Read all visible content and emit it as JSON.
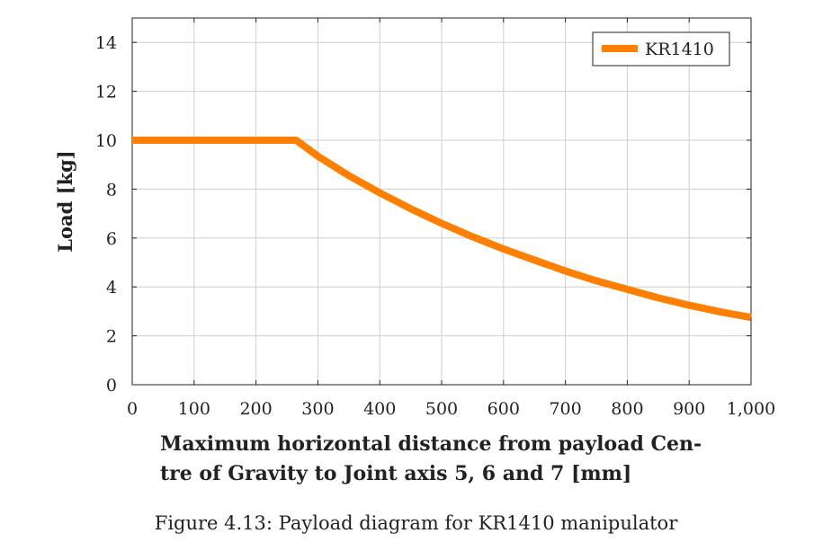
{
  "chart_data": {
    "type": "line",
    "xlabel": "Maximum horizontal distance from payload Centre of Gravity to Joint axis 5, 6 and 7 [mm]",
    "xlabel_lines": [
      "Maximum horizontal distance from payload Cen-",
      "tre of Gravity to Joint axis 5, 6 and 7 [mm]"
    ],
    "ylabel": "Load [kg]",
    "xlim": [
      0,
      1000
    ],
    "ylim": [
      0,
      15
    ],
    "x_ticks": [
      0,
      100,
      200,
      300,
      400,
      500,
      600,
      700,
      800,
      900,
      1000
    ],
    "x_tick_labels": [
      "0",
      "100",
      "200",
      "300",
      "400",
      "500",
      "600",
      "700",
      "800",
      "900",
      "1,000"
    ],
    "y_ticks": [
      0,
      2,
      4,
      6,
      8,
      10,
      12,
      14
    ],
    "y_tick_labels": [
      "0",
      "2",
      "4",
      "6",
      "8",
      "10",
      "12",
      "14"
    ],
    "grid": true,
    "legend_position": "top-right",
    "series": [
      {
        "name": "KR1410",
        "color": "#ff8000",
        "x": [
          0,
          265,
          300,
          350,
          400,
          450,
          500,
          550,
          600,
          650,
          700,
          750,
          800,
          850,
          900,
          950,
          1000
        ],
        "y": [
          10,
          10,
          9.35,
          8.55,
          7.85,
          7.2,
          6.6,
          6.05,
          5.55,
          5.1,
          4.65,
          4.25,
          3.9,
          3.55,
          3.25,
          2.98,
          2.75
        ]
      }
    ]
  },
  "caption": "Figure 4.13: Payload diagram for KR1410 manipulator"
}
